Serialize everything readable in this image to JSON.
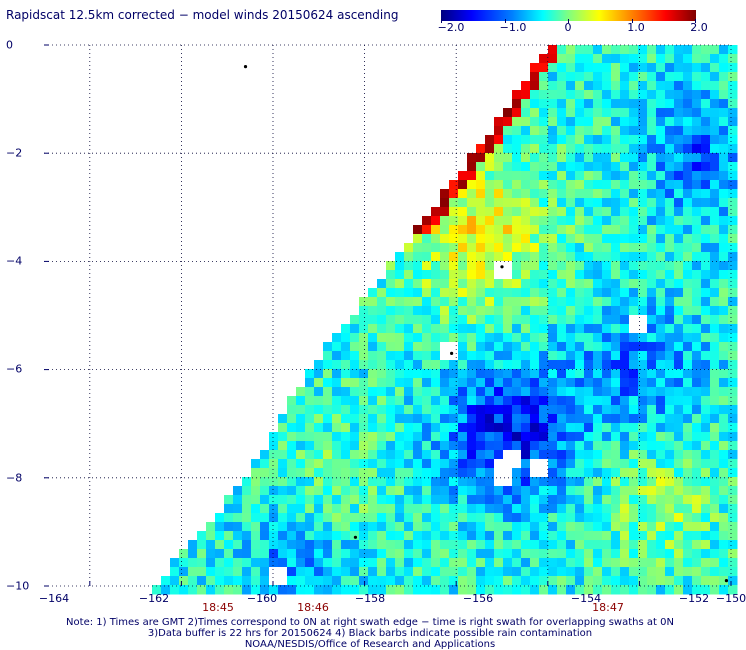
{
  "title": "Rapidscat 12.5km corrected − model winds 20150624 ascending",
  "colorbar": {
    "ticks": [
      "−2.0",
      "−1.0",
      "0",
      "1.0",
      "2.0"
    ],
    "stops": [
      "#00007f",
      "#0000ff",
      "#0080ff",
      "#00ffff",
      "#80ff80",
      "#ffff00",
      "#ff8000",
      "#ff0000",
      "#7f0000"
    ]
  },
  "x_axis": {
    "ticks": [
      "−164",
      "−162",
      "−160",
      "−158",
      "−156",
      "−154",
      "−152",
      "−150"
    ]
  },
  "y_axis": {
    "ticks": [
      "0",
      "−2",
      "−4",
      "−6",
      "−8",
      "−10"
    ]
  },
  "time_labels": [
    "18:45",
    "18:46",
    "18:47"
  ],
  "notes": [
    "Note: 1) Times are GMT 2)Times correspond to 0N at right swath edge − time is right swath for overlapping swaths at 0N",
    "3)Data buffer is 22 hrs for 20150624 4) Black barbs indicate possible rain contamination",
    "NOAA/NESDIS/Office of Research and Applications"
  ],
  "map": {
    "lon_range": [
      -165,
      -150
    ],
    "lat_range": [
      -10,
      0
    ],
    "swath_left_edge": [
      [
        -162.6,
        -10
      ],
      [
        -160.6,
        -8
      ],
      [
        -159.2,
        -6
      ],
      [
        -157.4,
        -4
      ],
      [
        -155.6,
        -2
      ],
      [
        -154.4,
        -0.5
      ],
      [
        -154.0,
        0
      ]
    ],
    "value_range": [
      -2.0,
      2.0
    ],
    "white_gaps": [
      [
        -154.7,
        -7.6
      ],
      [
        -154.9,
        -7.9
      ],
      [
        -154.2,
        -7.8
      ],
      [
        -152.0,
        -5.2
      ],
      [
        -156.1,
        -5.7
      ],
      [
        -155.0,
        -4.1
      ],
      [
        -159.9,
        -9.8
      ]
    ]
  }
}
